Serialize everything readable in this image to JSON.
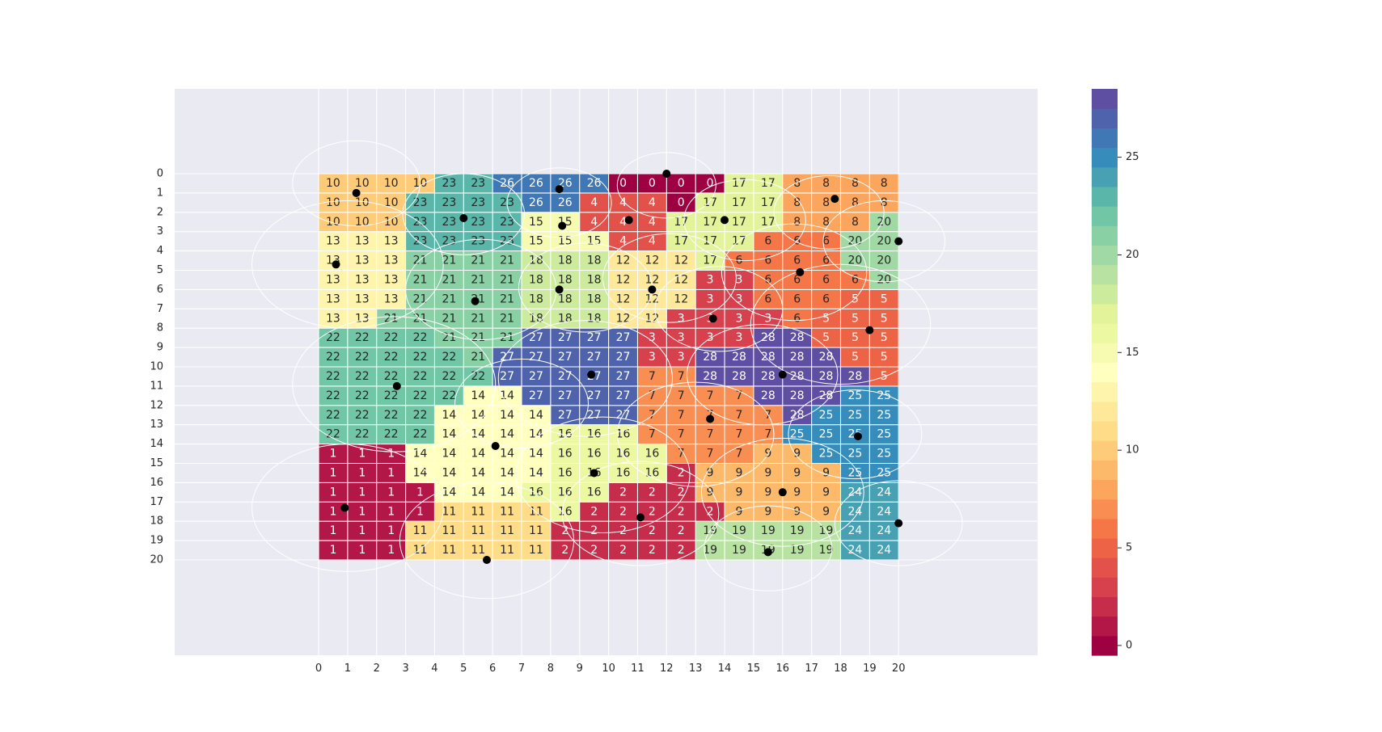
{
  "chart_data": {
    "type": "heatmap",
    "title": "",
    "xlabel": "",
    "ylabel": "",
    "x_ticks": [
      "0",
      "1",
      "2",
      "3",
      "4",
      "5",
      "6",
      "7",
      "8",
      "9",
      "10",
      "11",
      "12",
      "13",
      "14",
      "15",
      "16",
      "17",
      "18",
      "19",
      "20"
    ],
    "y_ticks": [
      "0",
      "1",
      "2",
      "3",
      "4",
      "5",
      "6",
      "7",
      "8",
      "9",
      "10",
      "11",
      "12",
      "13",
      "14",
      "15",
      "16",
      "17",
      "18",
      "19",
      "20"
    ],
    "xlim": [
      -5,
      25
    ],
    "ylim": [
      -4.5,
      25
    ],
    "y_inverted": true,
    "grid": true,
    "colormap": "Spectral",
    "colorbar": {
      "min": 0,
      "max": 28,
      "ticks": [
        0,
        5,
        10,
        15,
        20,
        25
      ]
    },
    "grid_rows": [
      [
        10,
        10,
        10,
        10,
        23,
        23,
        26,
        26,
        26,
        26,
        0,
        0,
        0,
        0,
        17,
        17,
        8,
        8,
        8,
        8
      ],
      [
        10,
        10,
        10,
        23,
        23,
        23,
        23,
        26,
        26,
        4,
        4,
        4,
        0,
        17,
        17,
        17,
        8,
        8,
        8,
        8
      ],
      [
        10,
        10,
        10,
        23,
        23,
        23,
        23,
        15,
        15,
        4,
        4,
        4,
        17,
        17,
        17,
        17,
        8,
        8,
        8,
        20
      ],
      [
        13,
        13,
        13,
        23,
        23,
        23,
        23,
        15,
        15,
        15,
        4,
        4,
        17,
        17,
        17,
        6,
        6,
        6,
        20,
        20
      ],
      [
        13,
        13,
        13,
        21,
        21,
        21,
        21,
        18,
        18,
        18,
        12,
        12,
        12,
        17,
        6,
        6,
        6,
        6,
        20,
        20
      ],
      [
        13,
        13,
        13,
        21,
        21,
        21,
        21,
        18,
        18,
        18,
        12,
        12,
        12,
        3,
        3,
        6,
        6,
        6,
        6,
        20
      ],
      [
        13,
        13,
        13,
        21,
        21,
        21,
        21,
        18,
        18,
        18,
        12,
        12,
        12,
        3,
        3,
        6,
        6,
        6,
        5,
        5
      ],
      [
        13,
        13,
        21,
        21,
        21,
        21,
        21,
        18,
        18,
        18,
        12,
        12,
        3,
        3,
        3,
        3,
        6,
        5,
        5,
        5
      ],
      [
        22,
        22,
        22,
        22,
        21,
        21,
        21,
        27,
        27,
        27,
        27,
        3,
        3,
        3,
        3,
        28,
        28,
        5,
        5,
        5
      ],
      [
        22,
        22,
        22,
        22,
        22,
        21,
        27,
        27,
        27,
        27,
        27,
        3,
        3,
        28,
        28,
        28,
        28,
        28,
        5,
        5
      ],
      [
        22,
        22,
        22,
        22,
        22,
        22,
        27,
        27,
        27,
        27,
        27,
        7,
        7,
        28,
        28,
        28,
        28,
        28,
        28,
        5
      ],
      [
        22,
        22,
        22,
        22,
        22,
        14,
        14,
        27,
        27,
        27,
        27,
        7,
        7,
        7,
        7,
        28,
        28,
        28,
        25,
        25
      ],
      [
        22,
        22,
        22,
        22,
        14,
        14,
        14,
        14,
        27,
        27,
        27,
        7,
        7,
        7,
        7,
        7,
        28,
        25,
        25,
        25
      ],
      [
        22,
        22,
        22,
        22,
        14,
        14,
        14,
        14,
        16,
        16,
        16,
        7,
        7,
        7,
        7,
        7,
        25,
        25,
        25,
        25
      ],
      [
        1,
        1,
        1,
        14,
        14,
        14,
        14,
        14,
        16,
        16,
        16,
        16,
        7,
        7,
        7,
        9,
        9,
        25,
        25,
        25
      ],
      [
        1,
        1,
        1,
        14,
        14,
        14,
        14,
        14,
        16,
        16,
        16,
        16,
        2,
        9,
        9,
        9,
        9,
        9,
        25,
        25
      ],
      [
        1,
        1,
        1,
        1,
        14,
        14,
        14,
        16,
        16,
        16,
        2,
        2,
        2,
        9,
        9,
        9,
        9,
        9,
        24,
        24
      ],
      [
        1,
        1,
        1,
        1,
        11,
        11,
        11,
        11,
        16,
        2,
        2,
        2,
        2,
        2,
        9,
        9,
        9,
        9,
        24,
        24
      ],
      [
        1,
        1,
        1,
        11,
        11,
        11,
        11,
        11,
        2,
        2,
        2,
        2,
        2,
        19,
        19,
        19,
        19,
        19,
        24,
        24
      ],
      [
        1,
        1,
        1,
        11,
        11,
        11,
        11,
        11,
        2,
        2,
        2,
        2,
        2,
        19,
        19,
        19,
        19,
        19,
        24,
        24
      ]
    ],
    "points": [
      {
        "x": 1.3,
        "y": 1.0
      },
      {
        "x": 0.6,
        "y": 4.7
      },
      {
        "x": 5.0,
        "y": 2.3
      },
      {
        "x": 5.4,
        "y": 6.6
      },
      {
        "x": 8.3,
        "y": 0.8
      },
      {
        "x": 8.4,
        "y": 2.7
      },
      {
        "x": 8.3,
        "y": 6.0
      },
      {
        "x": 10.7,
        "y": 2.4
      },
      {
        "x": 11.5,
        "y": 6.0
      },
      {
        "x": 12.0,
        "y": 0.0
      },
      {
        "x": 14.0,
        "y": 2.4
      },
      {
        "x": 13.6,
        "y": 7.5
      },
      {
        "x": 17.8,
        "y": 1.3
      },
      {
        "x": 16.6,
        "y": 5.1
      },
      {
        "x": 20.0,
        "y": 3.5
      },
      {
        "x": 19.0,
        "y": 8.1
      },
      {
        "x": 2.7,
        "y": 11.0
      },
      {
        "x": 9.4,
        "y": 10.4
      },
      {
        "x": 16.0,
        "y": 10.4
      },
      {
        "x": 6.1,
        "y": 14.1
      },
      {
        "x": 9.5,
        "y": 15.5
      },
      {
        "x": 13.5,
        "y": 12.7
      },
      {
        "x": 18.6,
        "y": 13.6
      },
      {
        "x": 0.9,
        "y": 17.3
      },
      {
        "x": 5.8,
        "y": 20.0
      },
      {
        "x": 11.1,
        "y": 17.8
      },
      {
        "x": 16.0,
        "y": 16.5
      },
      {
        "x": 15.5,
        "y": 19.6
      },
      {
        "x": 20.0,
        "y": 18.1
      }
    ],
    "circles": [
      {
        "x": 1.3,
        "y": 0.5,
        "r": 2.2
      },
      {
        "x": 5.0,
        "y": 2.1,
        "r": 2.1
      },
      {
        "x": 8.3,
        "y": 1.5,
        "r": 1.8
      },
      {
        "x": 12.0,
        "y": 0.6,
        "r": 1.7
      },
      {
        "x": 14.7,
        "y": 2.4,
        "r": 2.1
      },
      {
        "x": 17.6,
        "y": 2.0,
        "r": 1.9
      },
      {
        "x": 19.5,
        "y": 3.5,
        "r": 2.1
      },
      {
        "x": 1.0,
        "y": 4.7,
        "r": 3.3
      },
      {
        "x": 5.6,
        "y": 6.0,
        "r": 2.6
      },
      {
        "x": 9.2,
        "y": 5.9,
        "r": 2.3
      },
      {
        "x": 12.1,
        "y": 5.4,
        "r": 2.3
      },
      {
        "x": 13.8,
        "y": 7.0,
        "r": 2.2
      },
      {
        "x": 16.4,
        "y": 5.1,
        "r": 2.5
      },
      {
        "x": 18.0,
        "y": 7.8,
        "r": 3.1
      },
      {
        "x": 2.6,
        "y": 10.9,
        "r": 3.5
      },
      {
        "x": 7.0,
        "y": 11.9,
        "r": 2.3
      },
      {
        "x": 9.2,
        "y": 10.6,
        "r": 3.0
      },
      {
        "x": 15.3,
        "y": 10.4,
        "r": 2.6
      },
      {
        "x": 13.0,
        "y": 13.5,
        "r": 2.7
      },
      {
        "x": 18.5,
        "y": 13.5,
        "r": 2.3
      },
      {
        "x": 9.8,
        "y": 15.6,
        "r": 3.0
      },
      {
        "x": 1.0,
        "y": 17.3,
        "r": 3.3
      },
      {
        "x": 5.8,
        "y": 19.0,
        "r": 3.0
      },
      {
        "x": 11.1,
        "y": 17.6,
        "r": 2.7
      },
      {
        "x": 15.5,
        "y": 19.4,
        "r": 2.2
      },
      {
        "x": 16.0,
        "y": 16.5,
        "r": 2.8
      },
      {
        "x": 20.0,
        "y": 18.1,
        "r": 2.2
      }
    ]
  }
}
